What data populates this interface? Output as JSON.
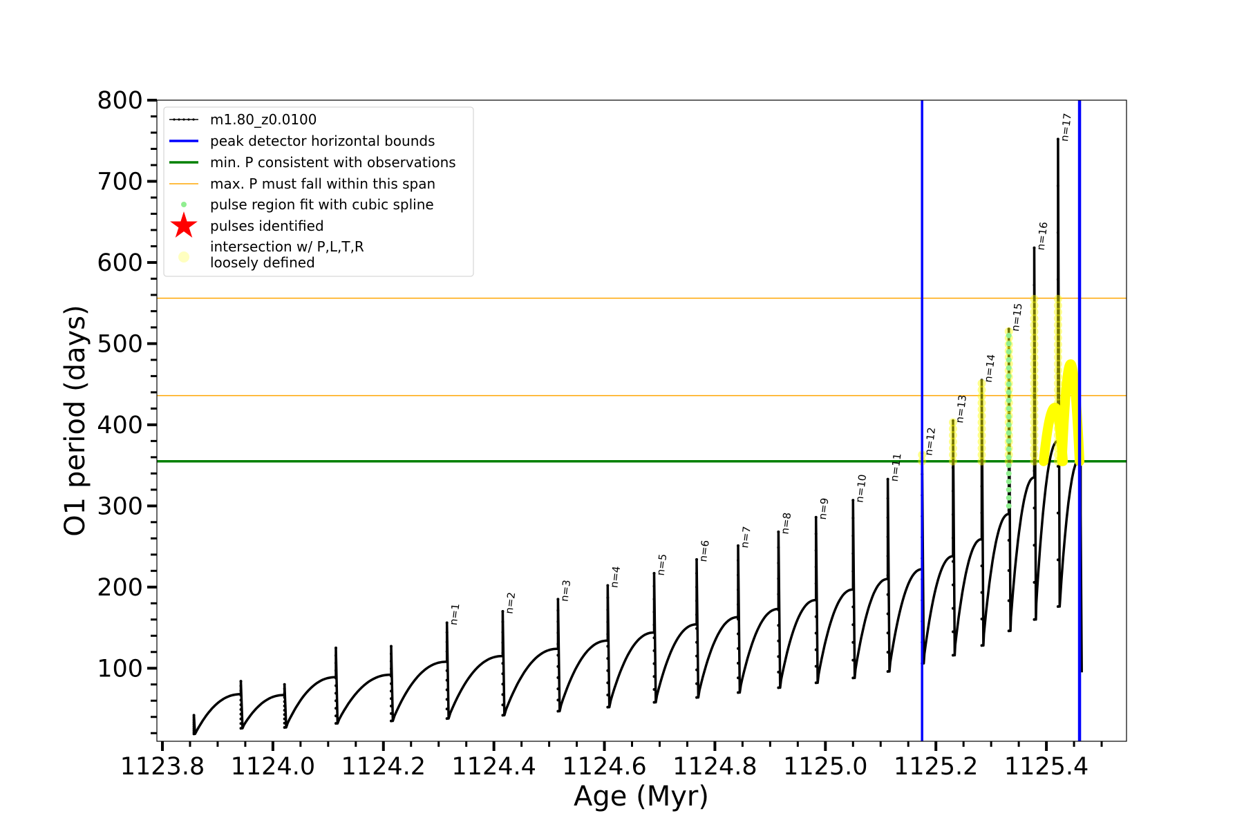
{
  "chart_data": {
    "type": "line",
    "title": "",
    "xlabel": "Age (Myr)",
    "ylabel": "O1 period (days)",
    "xlim": [
      1123.79,
      1125.545
    ],
    "ylim": [
      10,
      800
    ],
    "x_ticks": [
      "1123.8",
      "1124.0",
      "1124.2",
      "1124.4",
      "1124.6",
      "1124.8",
      "1125.0",
      "1125.2",
      "1125.4"
    ],
    "y_ticks": [
      "100",
      "200",
      "300",
      "400",
      "500",
      "600",
      "700",
      "800"
    ],
    "grid": false,
    "legend_position": "upper-left",
    "legend": [
      {
        "label": "m1.80_z0.0100",
        "style": "line-dot",
        "color": "#000000"
      },
      {
        "label": "peak detector horizontal bounds",
        "style": "line",
        "color": "#0000ff"
      },
      {
        "label": "min. P consistent with observations",
        "style": "line",
        "color": "#008000"
      },
      {
        "label": "max. P must fall within this span",
        "style": "thin-line",
        "color": "#ffa500"
      },
      {
        "label": "pulse region fit with cubic spline",
        "style": "dot",
        "color": "#90ee90"
      },
      {
        "label": "pulses identified",
        "style": "star",
        "color": "#ff0000"
      },
      {
        "label_lines": [
          "intersection w/ P,L,T,R",
          "loosely defined"
        ],
        "style": "big-dot",
        "color": "#ffffc0"
      }
    ],
    "colors": {
      "series": "#000000",
      "bounds": "#0000ff",
      "min_p": "#008000",
      "max_span": "#ffa500",
      "spline": "#90ee90",
      "intersection": "#ffff00"
    },
    "series_name": "m1.80_z0.0100",
    "vertical_bounds": [
      1125.175,
      1125.46
    ],
    "min_period": 355,
    "max_period_span": [
      436,
      556
    ],
    "pulses": [
      {
        "label": "n=1",
        "age": 1124.315,
        "peak": 156,
        "trough": 38,
        "pre_peak": 108
      },
      {
        "label": "n=2",
        "age": 1124.416,
        "peak": 170,
        "trough": 42,
        "pre_peak": 115
      },
      {
        "label": "n=3",
        "age": 1124.516,
        "peak": 185,
        "trough": 47,
        "pre_peak": 124
      },
      {
        "label": "n=4",
        "age": 1124.606,
        "peak": 202,
        "trough": 52,
        "pre_peak": 134
      },
      {
        "label": "n=5",
        "age": 1124.69,
        "peak": 217,
        "trough": 58,
        "pre_peak": 144
      },
      {
        "label": "n=6",
        "age": 1124.767,
        "peak": 234,
        "trough": 64,
        "pre_peak": 154
      },
      {
        "label": "n=7",
        "age": 1124.842,
        "peak": 251,
        "trough": 70,
        "pre_peak": 163
      },
      {
        "label": "n=8",
        "age": 1124.915,
        "peak": 268,
        "trough": 76,
        "pre_peak": 173
      },
      {
        "label": "n=9",
        "age": 1124.983,
        "peak": 286,
        "trough": 82,
        "pre_peak": 184
      },
      {
        "label": "n=10",
        "age": 1125.05,
        "peak": 307,
        "trough": 88,
        "pre_peak": 197
      },
      {
        "label": "n=11",
        "age": 1125.113,
        "peak": 333,
        "trough": 96,
        "pre_peak": 210
      },
      {
        "label": "n=12",
        "age": 1125.175,
        "peak": 365,
        "trough": 106,
        "pre_peak": 222
      },
      {
        "label": "n=13",
        "age": 1125.231,
        "peak": 405,
        "trough": 116,
        "pre_peak": 238
      },
      {
        "label": "n=14",
        "age": 1125.283,
        "peak": 455,
        "trough": 128,
        "pre_peak": 259
      },
      {
        "label": "n=15",
        "age": 1125.332,
        "peak": 518,
        "trough": 146,
        "pre_peak": 290
      },
      {
        "label": "n=16",
        "age": 1125.378,
        "peak": 618,
        "trough": 160,
        "pre_peak": 335
      },
      {
        "label": "n=17",
        "age": 1125.421,
        "peak": 752,
        "trough": 176,
        "pre_peak": 380
      }
    ],
    "early_pulses": [
      {
        "age": 1123.857,
        "peak": 42,
        "trough": 19
      },
      {
        "age": 1123.942,
        "peak": 84,
        "trough": 26,
        "pre_peak": 68
      },
      {
        "age": 1124.021,
        "peak": 80,
        "trough": 27,
        "pre_peak": 67
      },
      {
        "age": 1124.114,
        "peak": 125,
        "trough": 32,
        "pre_peak": 89
      },
      {
        "age": 1124.214,
        "peak": 127,
        "trough": 35,
        "pre_peak": 92
      }
    ],
    "final_point": {
      "age": 1125.462,
      "peak": 290,
      "trough": 95
    },
    "intersection_bumps": [
      {
        "x_start": 1125.395,
        "x_peak": 1125.418,
        "x_end": 1125.43,
        "y_low": 355,
        "y_high": 420
      },
      {
        "x_start": 1125.428,
        "x_peak": 1125.445,
        "x_end": 1125.46,
        "y_low": 355,
        "y_high": 474
      }
    ]
  }
}
